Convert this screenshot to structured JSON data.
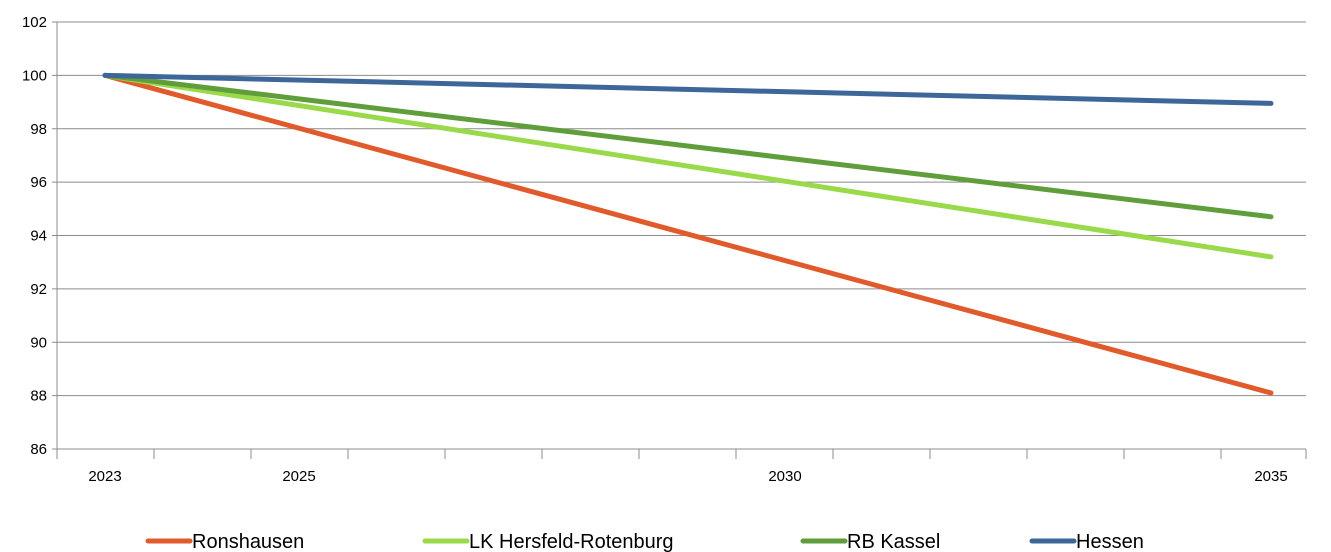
{
  "chart_data": {
    "type": "line",
    "title": "",
    "xlabel": "",
    "ylabel": "",
    "x": [
      2023,
      2035
    ],
    "x_ticks": [
      "2023",
      "2025",
      "2030",
      "2035"
    ],
    "xlim": [
      2023,
      2035
    ],
    "ylim": [
      86,
      102
    ],
    "y_ticks": [
      "86",
      "88",
      "90",
      "92",
      "94",
      "96",
      "98",
      "100",
      "102"
    ],
    "grid": true,
    "legend_position": "bottom",
    "series": [
      {
        "name": "Ronshausen",
        "color": "#e05a2b",
        "values": [
          100,
          88.1
        ]
      },
      {
        "name": "LK Hersfeld-Rotenburg",
        "color": "#99d94a",
        "values": [
          100,
          93.2
        ]
      },
      {
        "name": "RB Kassel",
        "color": "#5f9e3a",
        "values": [
          100,
          94.7
        ]
      },
      {
        "name": "Hessen",
        "color": "#3d6699",
        "values": [
          100,
          98.95
        ]
      }
    ]
  }
}
